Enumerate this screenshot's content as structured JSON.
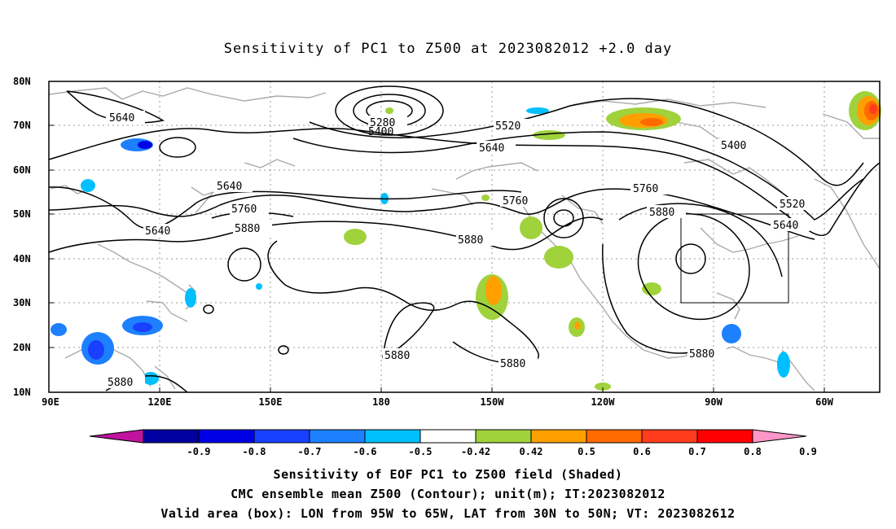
{
  "title": "Sensitivity of PC1 to Z500 at 2023082012 +2.0 day",
  "lat_labels": [
    "80N",
    "70N",
    "60N",
    "50N",
    "40N",
    "30N",
    "20N",
    "10N"
  ],
  "lon_labels": [
    "90E",
    "120E",
    "150E",
    "180",
    "150W",
    "120W",
    "90W",
    "60W"
  ],
  "contour_labels": {
    "c5640_a": "5640",
    "c5640_b": "5640",
    "c5640_c": "5640",
    "c5640_d": "5640",
    "c5640_e": "5640",
    "c5280": "5280",
    "c5400_a": "5400",
    "c5400_b": "5400",
    "c5520_a": "5520",
    "c5520_b": "5520",
    "c5760_a": "5760",
    "c5760_b": "5760",
    "c5760_c": "5760",
    "c5880_a": "5880",
    "c5880_b": "5880",
    "c5880_c": "5880",
    "c5880_d": "5880",
    "c5880_e": "5880",
    "c5880_f": "5880",
    "c5880_g": "5880"
  },
  "colorbar": {
    "labels": [
      "-0.9",
      "-0.8",
      "-0.7",
      "-0.6",
      "-0.5",
      "-0.42",
      "0.42",
      "0.5",
      "0.6",
      "0.7",
      "0.8",
      "0.9"
    ],
    "colors": [
      "#c0139e",
      "#0000a0",
      "#0000e6",
      "#1a40ff",
      "#1c80ff",
      "#00bfff",
      "#ffffff",
      "#a0d23c",
      "#ffa000",
      "#ff6a00",
      "#ff3c1e",
      "#ff0000",
      "#ff96c8"
    ]
  },
  "captions": [
    "Sensitivity of EOF PC1 to Z500 field (Shaded)",
    "CMC ensemble mean Z500 (Contour); unit(m); IT:2023082012",
    "Valid area (box): LON from 95W to 65W, LAT from 30N to 50N; VT: 2023082612"
  ],
  "valid_box": {
    "lon_from": "95W",
    "lon_to": "65W",
    "lat_from": "30N",
    "lat_to": "50N"
  }
}
